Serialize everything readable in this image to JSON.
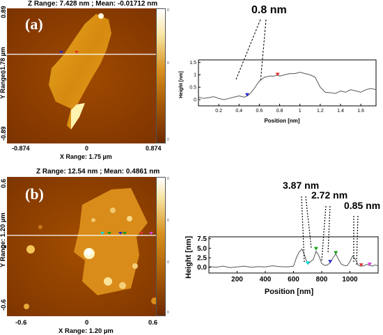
{
  "panel_a": {
    "label": "(a)",
    "header": "Z Range:  7.428 nm ; Mean: -0.01712 nm",
    "ylabel": "Y Range:  1.78 µm",
    "xlabel": "X Range:  1.75 µm",
    "yticks": [
      "0.89",
      "0",
      "-0.89"
    ],
    "xticks": [
      "-0.874",
      "0",
      "0.874"
    ],
    "annotation": "0.8 nm",
    "profile": {
      "ylabel": "Height [nm]",
      "xlabel": "Position [nm]"
    }
  },
  "panel_b": {
    "label": "(b)",
    "header": "Z Range:  12.54 nm ; Mean: 0.4861 nm",
    "ylabel": "Y Range:  1.20 µm",
    "xlabel": "X Range:  1.20 µm",
    "yticks": [
      "0.6",
      "0",
      "-0.6"
    ],
    "xticks": [
      "-0.6",
      "0",
      "0.6"
    ],
    "annotations": [
      "3.87 nm",
      "2.72 nm",
      "0.85 nm"
    ],
    "profile": {
      "ylabel": "Height [nm]",
      "xlabel": "Position [nm]"
    }
  },
  "colorbar_ticks": [
    "0",
    "0",
    "0",
    "0",
    "0",
    "0",
    "0"
  ],
  "chart_data": [
    {
      "type": "line",
      "title": "",
      "xlabel": "Position [nm]",
      "ylabel": "Height [nm]",
      "xlim": [
        0,
        1.75
      ],
      "ylim": [
        -0.25,
        1.6
      ],
      "xticks": [
        "0.2",
        "0.4",
        "0.6",
        "0.8",
        "1",
        "1.2",
        "1.4",
        "1.6"
      ],
      "yticks": [
        "0",
        "0.5",
        "1",
        "1.5"
      ],
      "grid": false,
      "series": [
        {
          "x": [
            0.0,
            0.05,
            0.1,
            0.15,
            0.2,
            0.25,
            0.3,
            0.35,
            0.4,
            0.45,
            0.48,
            0.5,
            0.52,
            0.55,
            0.6,
            0.65,
            0.7,
            0.75,
            0.78,
            0.8,
            0.85,
            0.9,
            0.95,
            1.0,
            1.05,
            1.1,
            1.15,
            1.2,
            1.25,
            1.3,
            1.35,
            1.4,
            1.45,
            1.5,
            1.55,
            1.6,
            1.65,
            1.7,
            1.75
          ],
          "y": [
            0.1,
            0.05,
            0.08,
            0.12,
            0.05,
            0.0,
            0.05,
            0.1,
            0.15,
            0.1,
            0.15,
            0.2,
            0.3,
            0.45,
            0.75,
            0.9,
            0.95,
            0.95,
            1.0,
            0.95,
            1.0,
            1.05,
            1.05,
            1.1,
            1.05,
            1.0,
            0.9,
            0.5,
            0.3,
            0.28,
            0.25,
            0.35,
            0.3,
            0.4,
            0.35,
            0.3,
            0.4,
            0.45,
            0.4
          ]
        }
      ],
      "markers": [
        {
          "x": 0.48,
          "y": 0.15,
          "color": "#2b2bd0"
        },
        {
          "x": 0.78,
          "y": 0.97,
          "color": "#e03030"
        }
      ]
    },
    {
      "type": "line",
      "title": "",
      "xlabel": "Position [nm]",
      "ylabel": "Height [nm]",
      "xlim": [
        0,
        1200
      ],
      "ylim": [
        -1.5,
        8
      ],
      "xticks": [
        "200",
        "400",
        "600",
        "800",
        "1000"
      ],
      "yticks": [
        "0.0",
        "2.5",
        "5.0",
        "7.5"
      ],
      "grid": false,
      "series": [
        {
          "x": [
            0,
            50,
            100,
            150,
            200,
            250,
            300,
            350,
            400,
            450,
            500,
            550,
            600,
            620,
            640,
            660,
            680,
            700,
            720,
            740,
            760,
            780,
            800,
            820,
            840,
            860,
            880,
            900,
            920,
            940,
            960,
            980,
            1000,
            1020,
            1040,
            1060,
            1080,
            1100,
            1120,
            1140,
            1160,
            1180,
            1200
          ],
          "y": [
            0.2,
            0.0,
            0.3,
            -0.1,
            0.1,
            0.3,
            0.0,
            0.2,
            0.1,
            0.4,
            0.2,
            0.1,
            0.3,
            2.5,
            4.0,
            4.8,
            3.0,
            0.8,
            1.5,
            2.0,
            4.2,
            3.0,
            1.0,
            0.5,
            0.6,
            1.2,
            2.5,
            3.5,
            2.0,
            0.8,
            0.5,
            0.4,
            1.5,
            3.0,
            2.0,
            0.5,
            0.3,
            0.4,
            0.8,
            0.5,
            0.3,
            0.6,
            0.4
          ]
        }
      ],
      "markers": [
        {
          "x": 700,
          "y": 0.8,
          "color": "#00e0e0"
        },
        {
          "x": 760,
          "y": 4.6,
          "color": "#13a013"
        },
        {
          "x": 860,
          "y": 1.2,
          "color": "#2b2bd0"
        },
        {
          "x": 900,
          "y": 3.5,
          "color": "#13a013"
        },
        {
          "x": 1080,
          "y": 0.3,
          "color": "#e03030"
        },
        {
          "x": 1140,
          "y": 0.5,
          "color": "#e040e0"
        }
      ]
    }
  ]
}
